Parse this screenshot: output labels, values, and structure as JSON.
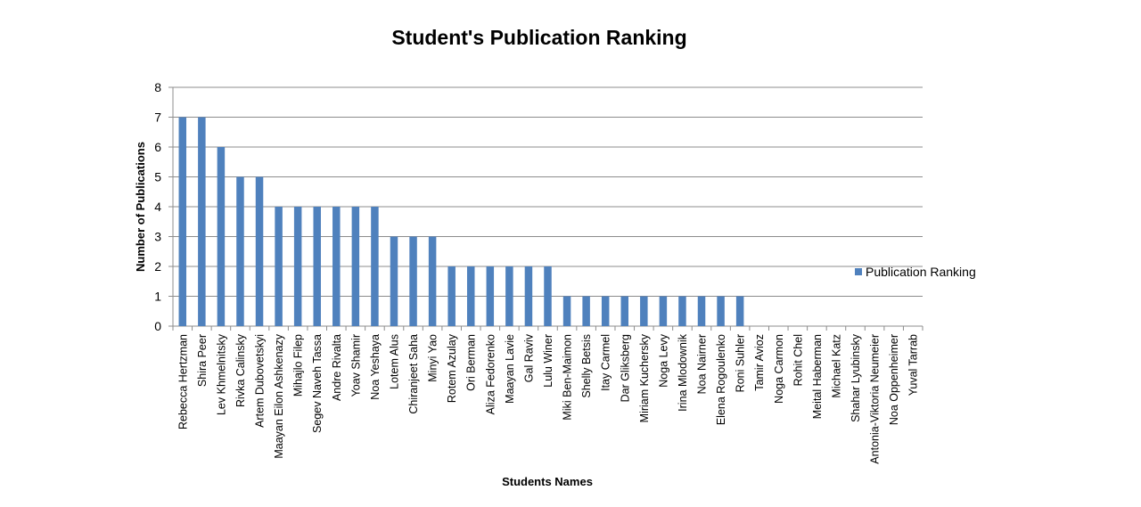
{
  "chart_data": {
    "type": "bar",
    "title": "Student's Publication Ranking",
    "xlabel": "Students Names",
    "ylabel": "Number of Publications",
    "ylim": [
      0,
      8
    ],
    "yticks": [
      0,
      1,
      2,
      3,
      4,
      5,
      6,
      7,
      8
    ],
    "grid": true,
    "legend_position": "right",
    "categories": [
      "Rebecca Hertzman",
      "Shira Peer",
      "Lev Khmelnitsky",
      "Rivka Calinsky",
      "Artem Dubovetskyi",
      "Maayan Eilon Ashkenazy",
      "Mihajlo Filep",
      "Segev Naveh Tassa",
      "Andre Rivalta",
      "Yoav Shamir",
      "Noa Yeshaya",
      "Lotem Alus",
      "Chiranjeet Saha",
      "Minyi Yao",
      "Rotem Azulay",
      "Ori Berman",
      "Aliza Fedorenko",
      "Maayan Lavie",
      "Gal Raviv",
      "Lulu Winer",
      "Miki Ben-Maimon",
      "Shelly Betsis",
      "Itay Carmel",
      "Dar Gliksberg",
      "Miriam Kuchersky",
      "Noga Levy",
      "Irina Mlodownik",
      "Noa Nairner",
      "Elena Rogoulenko",
      "Roni Suhler",
      "Tamir Avioz",
      "Noga Carmon",
      "Rohit Chel",
      "Meital Haberman",
      "Michael Katz",
      "Shahar Lyubinsky",
      "Antonia-Viktoria Neumeier",
      "Noa Oppenheimer",
      "Yuval Tarrab"
    ],
    "series": [
      {
        "name": "Publication Ranking",
        "color": "#4F81BD",
        "values": [
          7,
          7,
          6,
          5,
          5,
          4,
          4,
          4,
          4,
          4,
          4,
          3,
          3,
          3,
          2,
          2,
          2,
          2,
          2,
          2,
          1,
          1,
          1,
          1,
          1,
          1,
          1,
          1,
          1,
          1,
          0,
          0,
          0,
          0,
          0,
          0,
          0,
          0,
          0
        ]
      }
    ]
  }
}
